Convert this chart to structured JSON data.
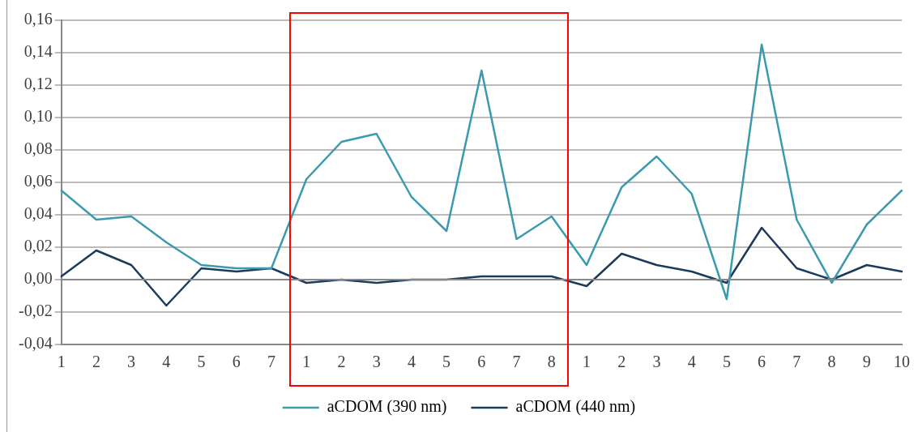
{
  "chart_data": {
    "type": "line",
    "categories": [
      "1",
      "2",
      "3",
      "4",
      "5",
      "6",
      "7",
      "1",
      "2",
      "3",
      "4",
      "5",
      "6",
      "7",
      "8",
      "1",
      "2",
      "3",
      "4",
      "5",
      "6",
      "7",
      "8",
      "9",
      "10"
    ],
    "series": [
      {
        "name": "aCDOM (390 nm)",
        "color": "#3c9ab0",
        "values": [
          0.055,
          0.037,
          0.039,
          0.023,
          0.009,
          0.007,
          0.007,
          0.062,
          0.085,
          0.09,
          0.051,
          0.03,
          0.129,
          0.025,
          0.039,
          0.009,
          0.057,
          0.076,
          0.053,
          -0.012,
          0.145,
          0.037,
          -0.002,
          0.034,
          0.055
        ]
      },
      {
        "name": "aCDOM (440 nm)",
        "color": "#1b3a5c",
        "values": [
          0.002,
          0.018,
          0.009,
          -0.016,
          0.007,
          0.005,
          0.007,
          -0.002,
          0.0,
          -0.002,
          0.0,
          0.0,
          0.002,
          0.002,
          0.002,
          -0.004,
          0.016,
          0.009,
          0.005,
          -0.002,
          0.032,
          0.007,
          0.0,
          0.009,
          0.005
        ]
      }
    ],
    "ylim": [
      -0.04,
      0.16
    ],
    "yticks": [
      {
        "value": -0.04,
        "label": "-0,04"
      },
      {
        "value": -0.02,
        "label": "-0,02"
      },
      {
        "value": 0,
        "label": "0,00"
      },
      {
        "value": 0.02,
        "label": "0,02"
      },
      {
        "value": 0.04,
        "label": "0,04"
      },
      {
        "value": 0.06,
        "label": "0,06"
      },
      {
        "value": 0.08,
        "label": "0,08"
      },
      {
        "value": 0.1,
        "label": "0,10"
      },
      {
        "value": 0.12,
        "label": "0,12"
      },
      {
        "value": 0.14,
        "label": "0,14"
      },
      {
        "value": 0.16,
        "label": "0,16"
      }
    ],
    "grid": "y",
    "legend": "bottom",
    "marker": "none",
    "line_style": "solid"
  }
}
